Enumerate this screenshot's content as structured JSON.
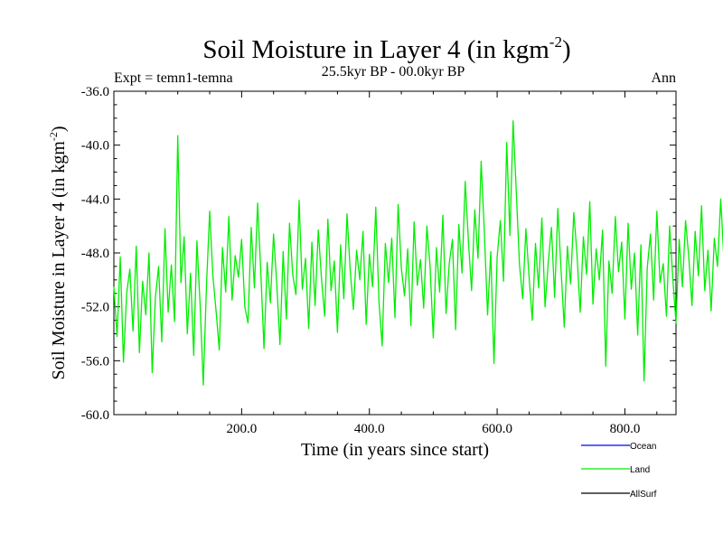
{
  "chart_data": {
    "type": "line",
    "title": "Soil Moisture in Layer 4 (in kgm",
    "title_sup": "-2",
    "title_close": ")",
    "subtitle_left": "Expt = temn1-temna",
    "subtitle_center": "25.5kyr BP - 00.0kyr BP",
    "subtitle_right": "Ann",
    "xlabel": "Time (in years since start)",
    "ylabel": "Soil Moisture in Layer 4 (in kgm",
    "ylabel_sup": "-2",
    "ylabel_close": ")",
    "xlim": [
      0,
      880
    ],
    "ylim": [
      -60,
      -36
    ],
    "x_ticks": [
      200,
      400,
      600,
      800
    ],
    "x_tick_labels": [
      "200.0",
      "400.0",
      "600.0",
      "800.0"
    ],
    "y_ticks": [
      -60,
      -56,
      -52,
      -48,
      -44,
      -40,
      -36
    ],
    "y_tick_labels": [
      "-60.0",
      "-56.0",
      "-52.0",
      "-48.0",
      "-44.0",
      "-40.0",
      "-36.0"
    ],
    "series": [
      {
        "name": "Land",
        "color": "#00ee00",
        "x_start": 0,
        "x_step": 5,
        "values": [
          -50.5,
          -54.2,
          -48.3,
          -56.1,
          -51.0,
          -49.2,
          -53.8,
          -47.5,
          -55.4,
          -50.1,
          -52.6,
          -48.0,
          -56.9,
          -51.3,
          -49.0,
          -54.6,
          -46.2,
          -52.4,
          -48.9,
          -53.1,
          -39.3,
          -50.2,
          -46.8,
          -54.0,
          -49.5,
          -55.6,
          -47.1,
          -51.8,
          -57.8,
          -50.4,
          -44.9,
          -49.7,
          -52.3,
          -55.2,
          -47.6,
          -50.9,
          -45.3,
          -51.5,
          -48.2,
          -49.8,
          -47.0,
          -52.0,
          -53.2,
          -46.1,
          -50.6,
          -44.3,
          -49.4,
          -55.1,
          -48.7,
          -51.7,
          -46.6,
          -50.3,
          -54.8,
          -47.9,
          -52.9,
          -45.8,
          -49.6,
          -51.1,
          -44.1,
          -50.7,
          -48.4,
          -53.6,
          -47.2,
          -51.9,
          -46.3,
          -49.9,
          -52.7,
          -45.5,
          -50.8,
          -48.6,
          -53.9,
          -47.4,
          -51.4,
          -45.1,
          -49.3,
          -52.2,
          -47.8,
          -50.0,
          -46.4,
          -53.3,
          -48.1,
          -50.5,
          -44.6,
          -51.6,
          -54.9,
          -47.3,
          -50.2,
          -46.9,
          -52.8,
          -44.4,
          -49.1,
          -51.2,
          -47.7,
          -53.4,
          -45.7,
          -50.4,
          -48.5,
          -52.1,
          -46.0,
          -49.0,
          -54.3,
          -47.6,
          -50.9,
          -45.2,
          -52.5,
          -48.8,
          -47.0,
          -53.7,
          -45.9,
          -49.5,
          -42.7,
          -47.1,
          -50.8,
          -44.8,
          -48.4,
          -41.2,
          -46.5,
          -52.6,
          -47.9,
          -56.2,
          -48.3,
          -45.6,
          -50.1,
          -39.8,
          -46.7,
          -38.2,
          -43.5,
          -48.9,
          -51.4,
          -46.2,
          -49.8,
          -53.0,
          -47.3,
          -50.6,
          -45.4,
          -52.0,
          -48.7,
          -46.1,
          -51.3,
          -44.7,
          -49.2,
          -53.5,
          -47.5,
          -50.3,
          -45.0,
          -48.1,
          -52.4,
          -46.8,
          -49.6,
          -44.2,
          -51.8,
          -47.7,
          -50.0,
          -46.3,
          -56.4,
          -48.6,
          -51.0,
          -45.3,
          -49.4,
          -47.2,
          -52.9,
          -45.8,
          -50.7,
          -48.0,
          -54.1,
          -47.4,
          -57.5,
          -49.1,
          -46.6,
          -51.5,
          -44.9,
          -50.2,
          -48.8,
          -52.7,
          -46.0,
          -49.9,
          -53.2,
          -47.0,
          -50.5,
          -45.6,
          -48.3,
          -51.9,
          -46.4,
          -49.7,
          -44.5,
          -50.8,
          -47.8,
          -52.3,
          -46.9,
          -49.0,
          -44.0,
          -48.5,
          -50.1,
          -47.6,
          -50.0
        ]
      },
      {
        "name": "Ocean",
        "color": "#0000ff",
        "values": []
      },
      {
        "name": "AllSurf",
        "color": "#000000",
        "values": []
      }
    ],
    "legend": {
      "position": "bottom-right",
      "entries": [
        {
          "label": "Ocean",
          "color": "#0000ff"
        },
        {
          "label": "Land",
          "color": "#00ee00"
        },
        {
          "label": "AllSurf",
          "color": "#000000"
        }
      ]
    }
  }
}
